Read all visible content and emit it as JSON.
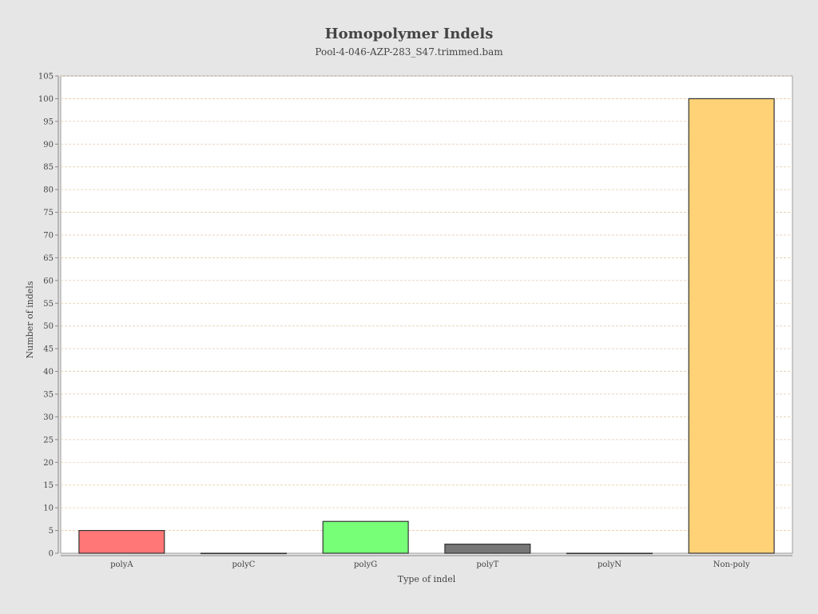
{
  "chart_data": {
    "type": "bar",
    "title": "Homopolymer Indels",
    "subtitle": "Pool-4-046-AZP-283_S47.trimmed.bam",
    "xlabel": "Type of indel",
    "ylabel": "Number of indels",
    "categories": [
      "polyA",
      "polyC",
      "polyG",
      "polyT",
      "polyN",
      "Non-poly"
    ],
    "values": [
      5,
      0,
      7,
      2,
      0,
      100
    ],
    "colors": [
      "#ff7777",
      "#7777ff",
      "#77ff77",
      "#777777",
      "#ffff77",
      "#ffd277"
    ],
    "ylim": [
      0,
      105
    ],
    "yticks": [
      0,
      5,
      10,
      15,
      20,
      25,
      30,
      35,
      40,
      45,
      50,
      55,
      60,
      65,
      70,
      75,
      80,
      85,
      90,
      95,
      100,
      105
    ],
    "grid": true,
    "legend": "none"
  }
}
